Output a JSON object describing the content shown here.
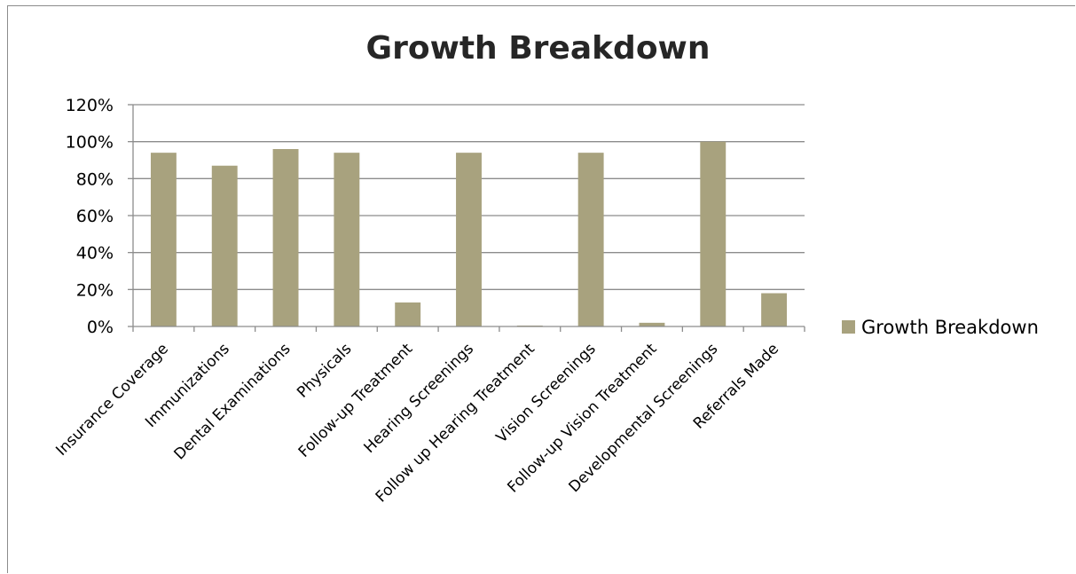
{
  "chart_data": {
    "type": "bar",
    "title": "Growth Breakdown",
    "xlabel": "",
    "ylabel": "",
    "categories": [
      "Insurance Coverage",
      "Immunizations",
      "Dental Examinations",
      "Physicals",
      "Follow-up Treatment",
      "Hearing Screenings",
      "Follow up Hearing Treatment",
      "Vision Screenings",
      "Follow-up Vision Treatment",
      "Developmental  Screenings",
      "Referrals Made"
    ],
    "series": [
      {
        "name": "Growth Breakdown",
        "values": [
          0.94,
          0.87,
          0.96,
          0.94,
          0.13,
          0.94,
          0.005,
          0.94,
          0.02,
          1.0,
          0.18
        ],
        "color": "#a8a27e"
      }
    ],
    "ylim": [
      0,
      1.2
    ],
    "yticks": [
      {
        "value": 0,
        "label": "0%"
      },
      {
        "value": 0.2,
        "label": "20%"
      },
      {
        "value": 0.4,
        "label": "40%"
      },
      {
        "value": 0.6,
        "label": "60%"
      },
      {
        "value": 0.8,
        "label": "80%"
      },
      {
        "value": 1.0,
        "label": "100%"
      },
      {
        "value": 1.2,
        "label": "120%"
      }
    ],
    "grid": true,
    "legend_position": "right"
  }
}
